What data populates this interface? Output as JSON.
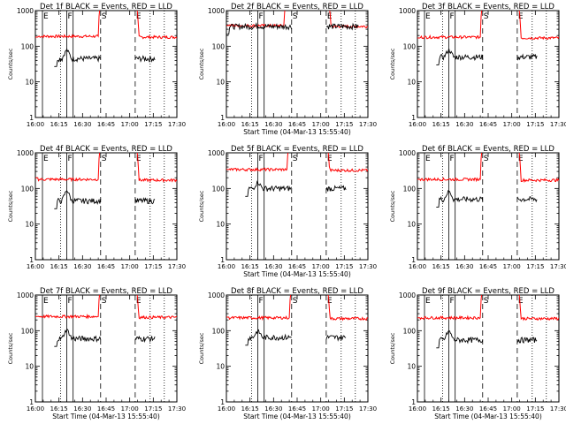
{
  "chart_data": {
    "type": "line",
    "grid": {
      "rows": 3,
      "cols": 3
    },
    "colors": {
      "events": "#000000",
      "lld": "#ff0000",
      "axes": "#000000",
      "background": "#ffffff"
    },
    "y_scale": "log",
    "ylim": [
      1,
      1000
    ],
    "y_tick_labels": [
      "1",
      "10",
      "100",
      "1000"
    ],
    "ylabel": "Counts/sec",
    "panels": [
      {
        "title": "Det 1f BLACK = Events, RED = LLD",
        "xlabel": "",
        "x_tick_labels": [
          "16:00",
          "16:15",
          "16:30",
          "16:45",
          "17:00",
          "17:15",
          "17:30"
        ],
        "xlim": [
          0,
          90
        ],
        "markers": [
          {
            "label": "E",
            "x": 4.5,
            "style": "solid"
          },
          {
            "label": "",
            "x": 16,
            "style": "dotted"
          },
          {
            "label": "F",
            "x": 20,
            "style": "solid"
          },
          {
            "label": "",
            "x": 24,
            "style": "solid"
          },
          {
            "label": "S",
            "x": 41.5,
            "style": "dashed"
          },
          {
            "label": "E",
            "x": 63.5,
            "style": "dashed"
          },
          {
            "label": "",
            "x": 73,
            "style": "dotted"
          },
          {
            "label": "",
            "x": 82,
            "style": "dotted"
          }
        ],
        "lld": {
          "base": 190,
          "peak_start": 41.5,
          "peak_end": 63,
          "lead": 180
        },
        "events": {
          "start": 12,
          "end": 76,
          "gap_start": 41.5,
          "gap_end": 63.5,
          "base": 45,
          "bump_x": 20,
          "bump_y": 80
        }
      },
      {
        "title": "Det 2f BLACK = Events, RED = LLD",
        "xlabel": "Start Time (04-Mar-13 15:55:40)",
        "x_tick_labels": [
          "16:00",
          "16:15",
          "16:30",
          "16:45",
          "17:00",
          "17:15",
          "17:30"
        ],
        "xlim": [
          0,
          90
        ],
        "markers": [
          {
            "label": "",
            "x": 16,
            "style": "dotted"
          },
          {
            "label": "F",
            "x": 20,
            "style": "solid"
          },
          {
            "label": "",
            "x": 24,
            "style": "solid"
          },
          {
            "label": "S",
            "x": 41.5,
            "style": "dashed"
          },
          {
            "label": "E",
            "x": 63.5,
            "style": "dashed"
          },
          {
            "label": "",
            "x": 73,
            "style": "dotted"
          },
          {
            "label": "",
            "x": 82,
            "style": "dotted"
          }
        ],
        "lld": {
          "base": 380,
          "peak_start": 38,
          "peak_end": 64,
          "lead": 380
        },
        "events": {
          "start": 0,
          "end": 84,
          "gap_start": 41.5,
          "gap_end": 63.5,
          "base": 360,
          "bump_x": 20,
          "bump_y": 380
        }
      },
      {
        "title": "Det 3f BLACK = Events, RED = LLD",
        "xlabel": "",
        "x_tick_labels": [
          "16:00",
          "16:15",
          "16:30",
          "16:45",
          "17:00",
          "17:15",
          "17:30"
        ],
        "xlim": [
          0,
          90
        ],
        "markers": [
          {
            "label": "E",
            "x": 4.5,
            "style": "solid"
          },
          {
            "label": "",
            "x": 16,
            "style": "dotted"
          },
          {
            "label": "F",
            "x": 20,
            "style": "solid"
          },
          {
            "label": "",
            "x": 24,
            "style": "solid"
          },
          {
            "label": "S",
            "x": 41.5,
            "style": "dashed"
          },
          {
            "label": "E",
            "x": 63.5,
            "style": "dashed"
          },
          {
            "label": "",
            "x": 73,
            "style": "dotted"
          },
          {
            "label": "",
            "x": 82,
            "style": "dotted"
          }
        ],
        "lld": {
          "base": 180,
          "peak_start": 41.5,
          "peak_end": 63,
          "lead": 170
        },
        "events": {
          "start": 12,
          "end": 76,
          "gap_start": 41.5,
          "gap_end": 63.5,
          "base": 50,
          "bump_x": 20,
          "bump_y": 80
        }
      },
      {
        "title": "Det 4f BLACK = Events, RED = LLD",
        "xlabel": "",
        "x_tick_labels": [
          "16:00",
          "16:15",
          "16:30",
          "16:45",
          "17:00",
          "17:15",
          "17:30"
        ],
        "xlim": [
          0,
          90
        ],
        "markers": [
          {
            "label": "E",
            "x": 4.5,
            "style": "solid"
          },
          {
            "label": "",
            "x": 16,
            "style": "dotted"
          },
          {
            "label": "F",
            "x": 20,
            "style": "solid"
          },
          {
            "label": "",
            "x": 24,
            "style": "solid"
          },
          {
            "label": "S",
            "x": 41.5,
            "style": "dashed"
          },
          {
            "label": "E",
            "x": 63.5,
            "style": "dashed"
          },
          {
            "label": "",
            "x": 73,
            "style": "dotted"
          },
          {
            "label": "",
            "x": 82,
            "style": "dotted"
          }
        ],
        "lld": {
          "base": 180,
          "peak_start": 41.5,
          "peak_end": 63,
          "lead": 200
        },
        "events": {
          "start": 12,
          "end": 76,
          "gap_start": 41.5,
          "gap_end": 63.5,
          "base": 45,
          "bump_x": 20,
          "bump_y": 90
        }
      },
      {
        "title": "Det 5f BLACK = Events, RED = LLD",
        "xlabel": "Start Time (04-Mar-13 15:55:40)",
        "x_tick_labels": [
          "16:00",
          "16:15",
          "16:30",
          "16:45",
          "17:00",
          "17:15",
          "17:30"
        ],
        "xlim": [
          0,
          90
        ],
        "markers": [
          {
            "label": "",
            "x": 16,
            "style": "dotted"
          },
          {
            "label": "F",
            "x": 20,
            "style": "solid"
          },
          {
            "label": "",
            "x": 24,
            "style": "solid"
          },
          {
            "label": "S",
            "x": 41.5,
            "style": "dashed"
          },
          {
            "label": "E",
            "x": 63.5,
            "style": "dashed"
          },
          {
            "label": "",
            "x": 73,
            "style": "dotted"
          },
          {
            "label": "",
            "x": 82,
            "style": "dotted"
          }
        ],
        "lld": {
          "base": 340,
          "peak_start": 40,
          "peak_end": 63,
          "lead": 340
        },
        "events": {
          "start": 12,
          "end": 76,
          "gap_start": 41.5,
          "gap_end": 63.5,
          "base": 100,
          "bump_x": 20,
          "bump_y": 150
        }
      },
      {
        "title": "Det 6f BLACK = Events, RED = LLD",
        "xlabel": "",
        "x_tick_labels": [
          "16:00",
          "16:15",
          "16:30",
          "16:45",
          "17:00",
          "17:15",
          "17:30"
        ],
        "xlim": [
          0,
          90
        ],
        "markers": [
          {
            "label": "E",
            "x": 4.5,
            "style": "solid"
          },
          {
            "label": "",
            "x": 16,
            "style": "dotted"
          },
          {
            "label": "F",
            "x": 20,
            "style": "solid"
          },
          {
            "label": "",
            "x": 24,
            "style": "solid"
          },
          {
            "label": "S",
            "x": 41.5,
            "style": "dashed"
          },
          {
            "label": "E",
            "x": 63.5,
            "style": "dashed"
          },
          {
            "label": "",
            "x": 73,
            "style": "dotted"
          },
          {
            "label": "",
            "x": 82,
            "style": "dotted"
          }
        ],
        "lld": {
          "base": 180,
          "peak_start": 41.5,
          "peak_end": 63,
          "lead": 180
        },
        "events": {
          "start": 12,
          "end": 76,
          "gap_start": 41.5,
          "gap_end": 63.5,
          "base": 50,
          "bump_x": 20,
          "bump_y": 85
        }
      },
      {
        "title": "Det 7f BLACK = Events, RED = LLD",
        "xlabel": "Start Time (04-Mar-13 15:55:40)",
        "x_tick_labels": [
          "16:00",
          "16:15",
          "16:30",
          "16:45",
          "17:00",
          "17:15",
          "17:30"
        ],
        "xlim": [
          0,
          90
        ],
        "markers": [
          {
            "label": "E",
            "x": 4.5,
            "style": "solid"
          },
          {
            "label": "",
            "x": 16,
            "style": "dotted"
          },
          {
            "label": "F",
            "x": 20,
            "style": "solid"
          },
          {
            "label": "",
            "x": 24,
            "style": "solid"
          },
          {
            "label": "S",
            "x": 41.5,
            "style": "dashed"
          },
          {
            "label": "E",
            "x": 63.5,
            "style": "dashed"
          },
          {
            "label": "",
            "x": 73,
            "style": "dotted"
          },
          {
            "label": "",
            "x": 82,
            "style": "dotted"
          }
        ],
        "lld": {
          "base": 250,
          "peak_start": 41.5,
          "peak_end": 63,
          "lead": 250
        },
        "events": {
          "start": 12,
          "end": 76,
          "gap_start": 41.5,
          "gap_end": 63.5,
          "base": 60,
          "bump_x": 20,
          "bump_y": 110
        }
      },
      {
        "title": "Det 8f BLACK = Events, RED = LLD",
        "xlabel": "Start Time (04-Mar-13 15:55:40)",
        "x_tick_labels": [
          "16:00",
          "16:15",
          "16:30",
          "16:45",
          "17:00",
          "17:15",
          "17:30"
        ],
        "xlim": [
          0,
          90
        ],
        "markers": [
          {
            "label": "",
            "x": 16,
            "style": "dotted"
          },
          {
            "label": "F",
            "x": 20,
            "style": "solid"
          },
          {
            "label": "",
            "x": 24,
            "style": "solid"
          },
          {
            "label": "S",
            "x": 41.5,
            "style": "dashed"
          },
          {
            "label": "E",
            "x": 63.5,
            "style": "dashed"
          },
          {
            "label": "",
            "x": 73,
            "style": "dotted"
          },
          {
            "label": "",
            "x": 82,
            "style": "dotted"
          }
        ],
        "lld": {
          "base": 230,
          "peak_start": 41.5,
          "peak_end": 63,
          "lead": 240
        },
        "events": {
          "start": 12,
          "end": 76,
          "gap_start": 41.5,
          "gap_end": 63.5,
          "base": 65,
          "bump_x": 20,
          "bump_y": 100
        }
      },
      {
        "title": "Det 9f BLACK = Events, RED = LLD",
        "xlabel": "Start Time (04-Mar-13 15:55:40)",
        "x_tick_labels": [
          "16:00",
          "16:15",
          "16:30",
          "16:45",
          "17:00",
          "17:15",
          "17:30"
        ],
        "xlim": [
          0,
          90
        ],
        "markers": [
          {
            "label": "E",
            "x": 4.5,
            "style": "solid"
          },
          {
            "label": "",
            "x": 16,
            "style": "dotted"
          },
          {
            "label": "F",
            "x": 20,
            "style": "solid"
          },
          {
            "label": "",
            "x": 24,
            "style": "solid"
          },
          {
            "label": "S",
            "x": 41.5,
            "style": "dashed"
          },
          {
            "label": "E",
            "x": 63.5,
            "style": "dashed"
          },
          {
            "label": "",
            "x": 73,
            "style": "dotted"
          },
          {
            "label": "",
            "x": 82,
            "style": "dotted"
          }
        ],
        "lld": {
          "base": 230,
          "peak_start": 41.5,
          "peak_end": 63,
          "lead": 230
        },
        "events": {
          "start": 12,
          "end": 76,
          "gap_start": 41.5,
          "gap_end": 63.5,
          "base": 55,
          "bump_x": 20,
          "bump_y": 100
        }
      }
    ]
  }
}
